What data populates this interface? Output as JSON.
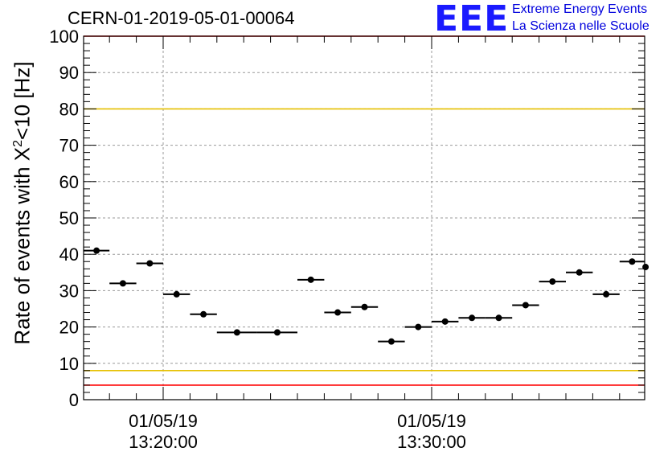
{
  "title": "CERN-01-2019-05-01-00064",
  "logo": {
    "mark": "EEE",
    "line1": "Extreme Energy Events",
    "line2": "La Scienza nelle Scuole"
  },
  "chart_data": {
    "type": "scatter",
    "ylabel": {
      "prefix": "Rate of events with X",
      "sup": "2",
      "suffix": "<10 [Hz]"
    },
    "ylim": [
      0,
      100
    ],
    "yticks": [
      "0",
      "10",
      "20",
      "30",
      "40",
      "50",
      "60",
      "70",
      "80",
      "90",
      "100"
    ],
    "xlim": [
      "13:17:00",
      "13:38:00"
    ],
    "xticks": [
      {
        "time": "13:20:00",
        "date": "01/05/19",
        "clock": "13:20:00"
      },
      {
        "time": "13:30:00",
        "date": "01/05/19",
        "clock": "13:30:00"
      }
    ],
    "grid": true,
    "reference_lines": [
      {
        "value": 100,
        "color": "#ff0000"
      },
      {
        "value": 80,
        "color": "#e6c000"
      },
      {
        "value": 8,
        "color": "#e6c000"
      },
      {
        "value": 4,
        "color": "#ff0000"
      }
    ],
    "points": [
      {
        "x": "13:17:00",
        "x_end": "13:18:00",
        "y": 41
      },
      {
        "x": "13:18:00",
        "x_end": "13:19:00",
        "y": 32
      },
      {
        "x": "13:19:00",
        "x_end": "13:20:00",
        "y": 37.5
      },
      {
        "x": "13:20:00",
        "x_end": "13:21:00",
        "y": 29
      },
      {
        "x": "13:21:00",
        "x_end": "13:22:00",
        "y": 23.5
      },
      {
        "x": "13:22:00",
        "x_end": "13:23:30",
        "y": 18.5
      },
      {
        "x": "13:23:30",
        "x_end": "13:25:00",
        "y": 18.5
      },
      {
        "x": "13:25:00",
        "x_end": "13:26:00",
        "y": 33
      },
      {
        "x": "13:26:00",
        "x_end": "13:27:00",
        "y": 24
      },
      {
        "x": "13:27:00",
        "x_end": "13:28:00",
        "y": 25.5
      },
      {
        "x": "13:28:00",
        "x_end": "13:29:00",
        "y": 16
      },
      {
        "x": "13:29:00",
        "x_end": "13:30:00",
        "y": 20
      },
      {
        "x": "13:30:00",
        "x_end": "13:31:00",
        "y": 21.5
      },
      {
        "x": "13:31:00",
        "x_end": "13:32:00",
        "y": 22.5
      },
      {
        "x": "13:32:00",
        "x_end": "13:33:00",
        "y": 22.5
      },
      {
        "x": "13:33:00",
        "x_end": "13:34:00",
        "y": 26
      },
      {
        "x": "13:34:00",
        "x_end": "13:35:00",
        "y": 32.5
      },
      {
        "x": "13:35:00",
        "x_end": "13:36:00",
        "y": 35
      },
      {
        "x": "13:36:00",
        "x_end": "13:37:00",
        "y": 29
      },
      {
        "x": "13:37:00",
        "x_end": "13:38:00",
        "y": 38
      },
      {
        "x": "13:38:00",
        "x_end": "13:38:30",
        "y": 36.5
      }
    ]
  }
}
